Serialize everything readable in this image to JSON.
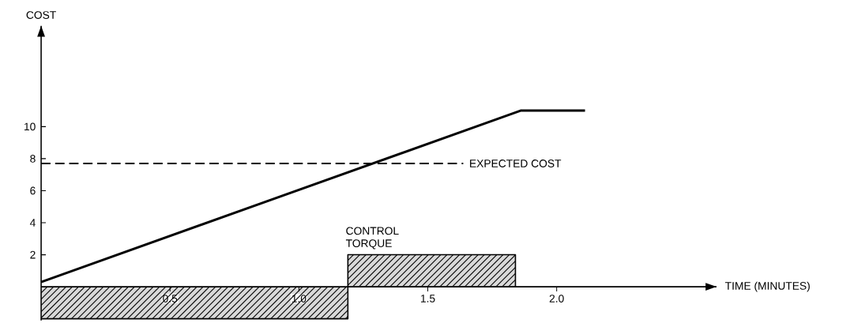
{
  "chart_data": {
    "type": "line",
    "xlabel": "TIME (MINUTES)",
    "ylabel": "COST",
    "xlim": [
      0,
      2.62
    ],
    "ylim": [
      -2.1,
      16.3
    ],
    "xticks": [
      0.5,
      {
        "value": 1,
        "label": "1.0"
      },
      1.5,
      {
        "value": 2,
        "label": "2.0"
      }
    ],
    "yticks": [
      2,
      4,
      6,
      8,
      10
    ],
    "series": [
      {
        "color": "#000000",
        "x": [
          0,
          1.86,
          2.11
        ],
        "values": [
          0.3,
          11.0,
          11.0
        ]
      },
      {
        "type": "area",
        "color": "#d9d9d9",
        "x": [
          0,
          1.19,
          1.19,
          1.84,
          1.84
        ],
        "values": [
          -2,
          -2,
          2,
          2,
          0
        ]
      }
    ],
    "ref_lines": [
      {
        "axis": "y",
        "value": 7.7,
        "label": "EXPECTED COST",
        "line_style": "dashed",
        "color": "#000000"
      }
    ],
    "annotations": [
      {
        "text": "CONTROL TORQUE",
        "x": 1.19,
        "y": 2
      }
    ]
  }
}
